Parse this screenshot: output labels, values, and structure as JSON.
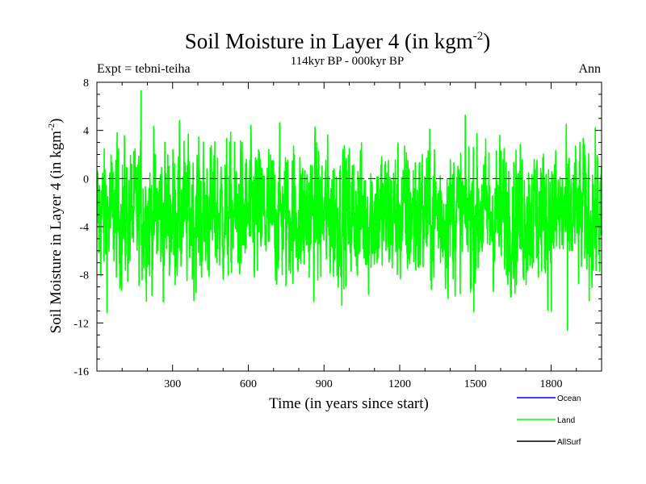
{
  "chart_data": {
    "type": "line",
    "title": "Soil Moisture in Layer 4 (in kgm",
    "title_sup": "-2",
    "title_close": ")",
    "subtitle": "114kyr BP - 000kyr BP",
    "expt_label": "Expt = tebni-teiha",
    "season_label": "Ann",
    "xlabel": "Time (in years since start)",
    "ylabel": "Soil Moisture in Layer 4 (in kgm",
    "ylabel_sup": "-2",
    "ylabel_close": ")",
    "xlim": [
      0,
      2000
    ],
    "ylim": [
      -16,
      8
    ],
    "x_ticks": [
      300,
      600,
      900,
      1200,
      1500,
      1800
    ],
    "x_tick_labels": [
      "300",
      "600",
      "900",
      "1200",
      "1500",
      "1800"
    ],
    "y_ticks": [
      -16,
      -12,
      -8,
      -4,
      0,
      4,
      8
    ],
    "y_tick_labels": [
      "-16",
      "-12",
      "-8",
      "-4",
      "0",
      "4",
      "8"
    ],
    "zero_line": 0,
    "legend": [
      {
        "name": "Ocean",
        "color": "#0000ff"
      },
      {
        "name": "Land",
        "color": "#00ff00"
      },
      {
        "name": "AllSurf",
        "color": "#000000"
      }
    ],
    "series": [
      {
        "name": "Land",
        "color": "#00ff00",
        "n_points": 2000,
        "mean": -3,
        "noise_amplitude": 2.8,
        "min": -12.6,
        "max": 7.3,
        "x_of_max": 175,
        "x_of_min": 1865
      }
    ]
  }
}
